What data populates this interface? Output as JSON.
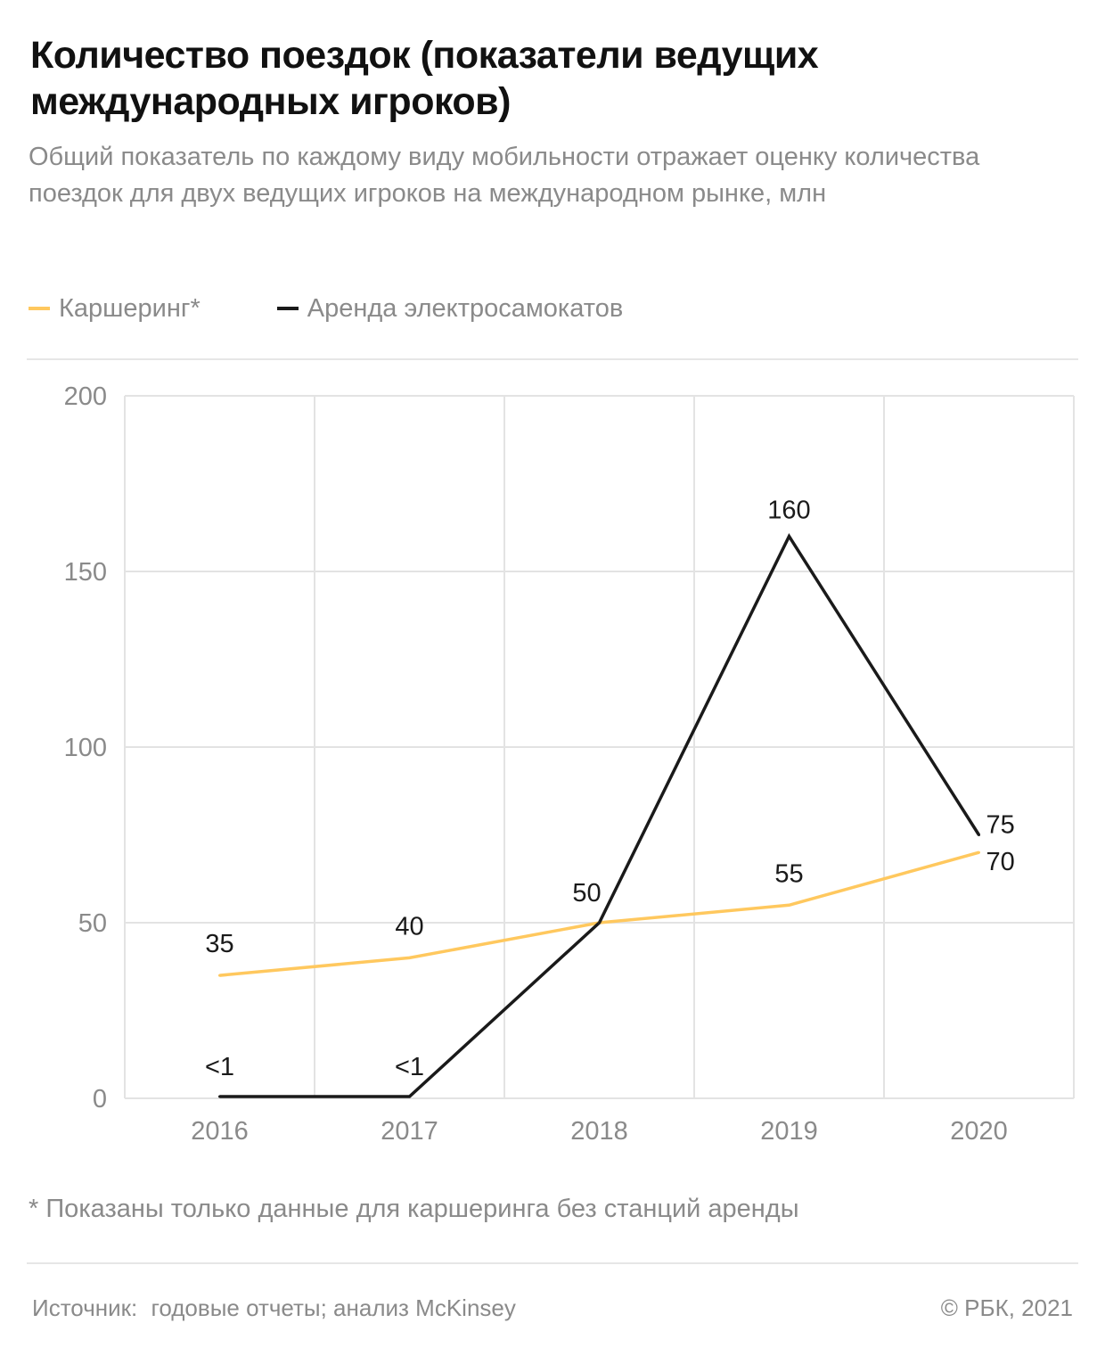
{
  "header": {
    "title": "Количество поездок (показатели ведущих международных игроков)",
    "subtitle": "Общий показатель по каждому виду мобильности отражает оценку количества поездок для двух ведущих игроков на международном рынке, млн"
  },
  "colors": {
    "carsharing": "#ffc85e",
    "scooters": "#1a1a1a",
    "grid": "#e3e3e3",
    "muted_text": "#8a8a8a"
  },
  "chart_data": {
    "type": "line",
    "x": [
      "2016",
      "2017",
      "2018",
      "2019",
      "2020"
    ],
    "series": [
      {
        "name": "Каршеринг*",
        "color": "#ffc85e",
        "values": [
          35,
          40,
          50,
          55,
          70
        ],
        "labels": [
          "35",
          "40",
          "50",
          "55",
          "70"
        ]
      },
      {
        "name": "Аренда электросамокатов",
        "color": "#1a1a1a",
        "values": [
          0.5,
          0.5,
          50,
          160,
          75
        ],
        "labels": [
          "<1",
          "<1",
          "",
          "160",
          "75"
        ]
      }
    ],
    "yticks": [
      "0",
      "50",
      "100",
      "150",
      "200"
    ],
    "ylim": [
      0,
      200
    ],
    "grid": true,
    "legend_position": "top-left"
  },
  "footnote": "* Показаны только данные для каршеринга без станций аренды",
  "source": {
    "label": "Источник:",
    "text": "годовые отчеты; анализ McKinsey"
  },
  "copyright": "© РБК, 2021"
}
